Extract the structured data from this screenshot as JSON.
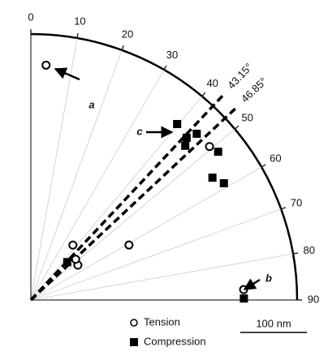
{
  "chart_data": {
    "type": "polar-scatter",
    "thetalim": [
      0,
      90
    ],
    "thetaticks": [
      0,
      10,
      20,
      30,
      40,
      50,
      60,
      70,
      80,
      90
    ],
    "rlim": [
      0,
      400
    ],
    "grid": true,
    "series": [
      {
        "name": "Tension",
        "marker": "open-circle",
        "color": "#000000",
        "theta": [
          3.7,
          49.3,
          60.7,
          37.4,
          53.4,
          47.7,
          87.2
        ],
        "values": [
          354,
          354,
          169,
          104,
          88,
          91,
          320
        ]
      },
      {
        "name": "Compression",
        "marker": "filled-square",
        "color": "#000000",
        "theta": [
          39.7,
          43.8,
          44.9,
          45,
          51.6,
          56,
          58.8,
          43.8,
          89.6
        ],
        "values": [
          344,
          338,
          353,
          328,
          359,
          329,
          339,
          79,
          320
        ]
      }
    ],
    "reference_lines": [
      {
        "value": 43.15,
        "label": "43.15°"
      },
      {
        "value": 46.85,
        "label": "46.85°"
      }
    ],
    "annotations": [
      "a",
      "b",
      "c"
    ],
    "scale_bar": {
      "value": 100,
      "label": "100 nm"
    }
  }
}
